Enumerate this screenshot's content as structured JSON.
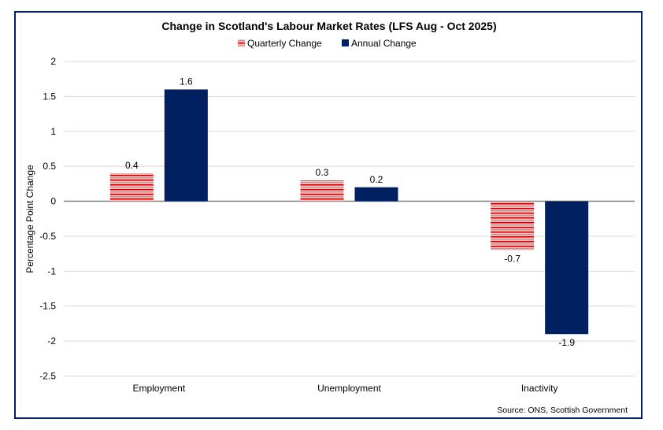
{
  "chart_data": {
    "type": "bar",
    "title": "Change in Scotland's Labour Market Rates (LFS Aug - Oct 2025)",
    "ylabel": "Percentage Point Change",
    "xlabel": "",
    "categories": [
      "Employment",
      "Unemployment",
      "Inactivity"
    ],
    "series": [
      {
        "name": "Quarterly Change",
        "values": [
          0.4,
          0.3,
          -0.7
        ],
        "color": "#c00000",
        "pattern": "horizontal-stripes"
      },
      {
        "name": "Annual Change",
        "values": [
          1.6,
          0.2,
          -1.9
        ],
        "color": "#002060"
      }
    ],
    "ylim": [
      -2.5,
      2
    ],
    "yticks": [
      2,
      1.5,
      1,
      0.5,
      0,
      -0.5,
      -1,
      -1.5,
      -2,
      -2.5
    ],
    "grid": true,
    "legend": "top",
    "source": "Source: ONS, Scottish Government",
    "border_color": "#002060"
  }
}
